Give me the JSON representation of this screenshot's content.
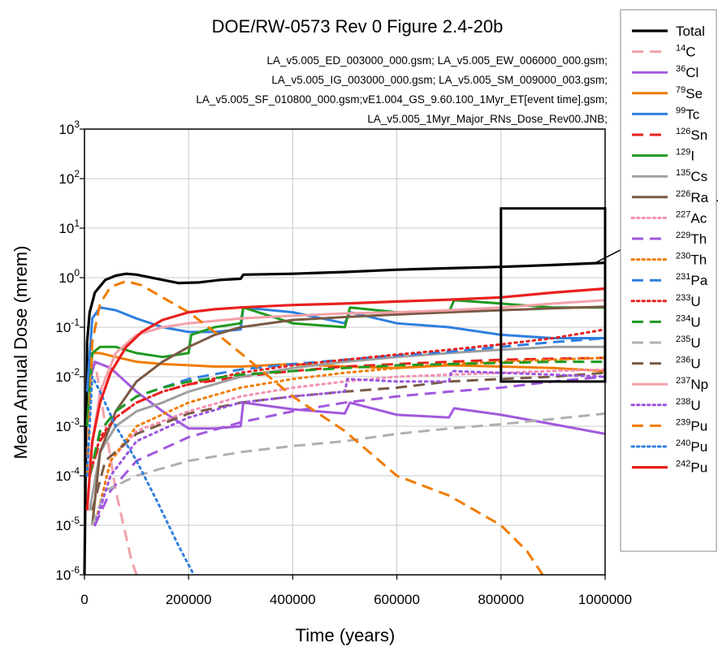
{
  "chart_data": {
    "type": "line",
    "title": "DOE/RW-0573 Rev 0 Figure 2.4-20b",
    "file_notes": [
      "LA_v5.005_ED_003000_000.gsm; LA_v5.005_EW_006000_000.gsm;",
      "LA_v5.005_IG_003000_000.gsm; LA_v5.005_SM_009000_003.gsm;",
      "LA_v5.005_SF_010800_000.gsm;vE1.004_GS_9.60.100_1Myr_ET[event time].gsm;",
      "LA_v5.005_1Myr_Major_RNs_Dose_Rev00.JNB;"
    ],
    "xlabel": "Time (years)",
    "ylabel": "Mean Annual Dose (mrem)",
    "xlim": [
      0,
      1000000
    ],
    "ylim": [
      1e-06,
      1000
    ],
    "yscale": "log",
    "grid": true,
    "legend_position": "right",
    "x_ticks": [
      "0",
      "200000",
      "400000",
      "600000",
      "800000",
      "1000000"
    ],
    "x_tick_values": [
      0,
      200000,
      400000,
      600000,
      800000,
      1000000
    ],
    "y_ticks": [
      {
        "base": "10",
        "exp": "3"
      },
      {
        "base": "10",
        "exp": "2"
      },
      {
        "base": "10",
        "exp": "1"
      },
      {
        "base": "10",
        "exp": "0"
      },
      {
        "base": "10",
        "exp": "-1"
      },
      {
        "base": "10",
        "exp": "-2"
      },
      {
        "base": "10",
        "exp": "-3"
      },
      {
        "base": "10",
        "exp": "-4"
      },
      {
        "base": "10",
        "exp": "-5"
      },
      {
        "base": "10",
        "exp": "-6"
      }
    ],
    "y_tick_values": [
      1000,
      100,
      10,
      1,
      0.1,
      0.01,
      0.001,
      0.0001,
      1e-05,
      1e-06
    ],
    "zoom_box": {
      "x": [
        800000,
        1000000
      ],
      "y": [
        0.008,
        25
      ]
    },
    "series": [
      {
        "name": "Total",
        "sup": "",
        "label": "Total",
        "color": "#000000",
        "dash": "solid",
        "width": 3.2,
        "x": [
          0,
          5000,
          10000,
          20000,
          40000,
          60000,
          80000,
          100000,
          140000,
          180000,
          220000,
          260000,
          300000,
          305000,
          400000,
          500000,
          600000,
          700000,
          800000,
          900000,
          1000000
        ],
        "y": [
          1e-06,
          0.05,
          0.2,
          0.5,
          0.9,
          1.1,
          1.2,
          1.15,
          0.95,
          0.78,
          0.8,
          0.9,
          0.95,
          1.15,
          1.2,
          1.3,
          1.45,
          1.55,
          1.65,
          1.8,
          2.0
        ]
      },
      {
        "name": "C",
        "sup": "14",
        "label": "C",
        "color": "#f2a1a8",
        "dash": "long",
        "width": 3,
        "x": [
          5000,
          10000,
          20000,
          30000,
          45000,
          60000,
          75000,
          90000,
          100000
        ],
        "y": [
          0.0001,
          0.01,
          0.02,
          0.005,
          0.0005,
          5e-05,
          1e-05,
          2e-06,
          1e-06
        ]
      },
      {
        "name": "Cl",
        "sup": "36",
        "label": "Cl",
        "color": "#a259dd",
        "dash": "solid",
        "width": 3,
        "x": [
          5000,
          20000,
          50000,
          100000,
          150000,
          200000,
          250000,
          300000,
          305000,
          400000,
          500000,
          510000,
          600000,
          700000,
          710000,
          800000,
          900000,
          1000000
        ],
        "y": [
          0.005,
          0.02,
          0.015,
          0.005,
          0.002,
          0.0009,
          0.0009,
          0.001,
          0.003,
          0.0022,
          0.0018,
          0.003,
          0.0017,
          0.0015,
          0.0023,
          0.0017,
          0.0011,
          0.0007
        ]
      },
      {
        "name": "Se",
        "sup": "79",
        "label": "Se",
        "color": "#f07c00",
        "dash": "solid",
        "width": 3,
        "x": [
          5000,
          15000,
          30000,
          60000,
          100000,
          150000,
          200000,
          250000,
          300000,
          400000,
          500000,
          600000,
          700000,
          800000,
          900000,
          1000000
        ],
        "y": [
          0.001,
          0.03,
          0.03,
          0.025,
          0.02,
          0.018,
          0.017,
          0.016,
          0.016,
          0.018,
          0.016,
          0.015,
          0.017,
          0.016,
          0.015,
          0.013
        ]
      },
      {
        "name": "Tc",
        "sup": "99",
        "label": "Tc",
        "color": "#2f7fe0",
        "dash": "solid",
        "width": 3,
        "x": [
          5000,
          15000,
          30000,
          60000,
          100000,
          150000,
          200000,
          250000,
          300000,
          305000,
          400000,
          500000,
          510000,
          600000,
          700000,
          800000,
          900000,
          1000000
        ],
        "y": [
          0.005,
          0.15,
          0.25,
          0.22,
          0.15,
          0.1,
          0.08,
          0.08,
          0.09,
          0.25,
          0.2,
          0.12,
          0.2,
          0.12,
          0.1,
          0.07,
          0.06,
          0.06
        ]
      },
      {
        "name": "Sn",
        "sup": "126",
        "label": "Sn",
        "color": "#e8201e",
        "dash": "long",
        "width": 3,
        "x": [
          10000,
          30000,
          60000,
          100000,
          150000,
          200000,
          300000,
          400000,
          500000,
          600000,
          700000,
          800000,
          900000,
          1000000
        ],
        "y": [
          0.0001,
          0.0005,
          0.0015,
          0.003,
          0.005,
          0.007,
          0.01,
          0.013,
          0.016,
          0.018,
          0.02,
          0.022,
          0.023,
          0.024
        ]
      },
      {
        "name": "I",
        "sup": "129",
        "label": "I",
        "color": "#1f9a1f",
        "dash": "solid",
        "width": 3,
        "x": [
          5000,
          15000,
          30000,
          60000,
          100000,
          150000,
          200000,
          205000,
          250000,
          300000,
          305000,
          400000,
          500000,
          510000,
          600000,
          700000,
          710000,
          800000,
          900000,
          1000000
        ],
        "y": [
          0.001,
          0.03,
          0.04,
          0.04,
          0.03,
          0.025,
          0.03,
          0.07,
          0.1,
          0.12,
          0.25,
          0.12,
          0.1,
          0.25,
          0.2,
          0.2,
          0.35,
          0.3,
          0.25,
          0.25
        ]
      },
      {
        "name": "Cs",
        "sup": "135",
        "label": "Cs",
        "color": "#a0a0a0",
        "dash": "solid",
        "width": 3,
        "x": [
          10000,
          30000,
          60000,
          100000,
          150000,
          200000,
          300000,
          400000,
          500000,
          600000,
          700000,
          800000,
          900000,
          1000000
        ],
        "y": [
          2e-05,
          0.0003,
          0.001,
          0.002,
          0.003,
          0.005,
          0.01,
          0.015,
          0.02,
          0.025,
          0.03,
          0.035,
          0.04,
          0.04
        ]
      },
      {
        "name": "Ra",
        "sup": "226",
        "label": "Ra",
        "color": "#7a5a45",
        "dash": "solid",
        "width": 3,
        "x": [
          15000,
          30000,
          60000,
          100000,
          150000,
          200000,
          250000,
          300000,
          400000,
          500000,
          600000,
          700000,
          800000,
          900000,
          1000000
        ],
        "y": [
          1e-05,
          0.0003,
          0.002,
          0.008,
          0.02,
          0.04,
          0.07,
          0.1,
          0.14,
          0.16,
          0.18,
          0.2,
          0.22,
          0.24,
          0.26
        ]
      },
      {
        "name": "Ac",
        "sup": "227",
        "label": "Ac",
        "color": "#f48fb1",
        "dash": "dot",
        "width": 3,
        "x": [
          20000,
          50000,
          100000,
          200000,
          300000,
          400000,
          500000,
          600000,
          700000,
          800000,
          900000,
          1000000
        ],
        "y": [
          1e-05,
          0.0002,
          0.0008,
          0.002,
          0.004,
          0.006,
          0.008,
          0.01,
          0.011,
          0.012,
          0.013,
          0.014
        ]
      },
      {
        "name": "Th",
        "sup": "229",
        "label": "Th",
        "color": "#a259dd",
        "dash": "long",
        "width": 3,
        "x": [
          20000,
          50000,
          100000,
          200000,
          300000,
          400000,
          500000,
          600000,
          700000,
          800000,
          900000,
          1000000
        ],
        "y": [
          1e-05,
          5e-05,
          0.0002,
          0.0006,
          0.0012,
          0.002,
          0.003,
          0.004,
          0.005,
          0.006,
          0.008,
          0.01
        ]
      },
      {
        "name": "Th",
        "sup": "230",
        "label": "Th",
        "color": "#f07c00",
        "dash": "dot",
        "width": 3,
        "x": [
          20000,
          50000,
          100000,
          200000,
          300000,
          400000,
          500000,
          600000,
          700000,
          800000,
          900000,
          1000000
        ],
        "y": [
          1e-05,
          0.0002,
          0.001,
          0.003,
          0.006,
          0.009,
          0.012,
          0.015,
          0.018,
          0.02,
          0.022,
          0.024
        ]
      },
      {
        "name": "Pa",
        "sup": "231",
        "label": "Pa",
        "color": "#2f7fe0",
        "dash": "long",
        "width": 3,
        "x": [
          10000,
          30000,
          60000,
          100000,
          150000,
          200000,
          300000,
          400000,
          500000,
          600000,
          700000,
          800000,
          900000,
          1000000
        ],
        "y": [
          0.0001,
          0.0008,
          0.002,
          0.004,
          0.006,
          0.009,
          0.014,
          0.018,
          0.022,
          0.027,
          0.032,
          0.04,
          0.05,
          0.06
        ]
      },
      {
        "name": "U",
        "sup": "233",
        "label": "U",
        "color": "#e8201e",
        "dash": "dot",
        "width": 3,
        "x": [
          10000,
          30000,
          60000,
          100000,
          150000,
          200000,
          300000,
          400000,
          500000,
          600000,
          700000,
          800000,
          900000,
          1000000
        ],
        "y": [
          0.0001,
          0.0006,
          0.0015,
          0.003,
          0.005,
          0.007,
          0.012,
          0.017,
          0.022,
          0.028,
          0.035,
          0.045,
          0.06,
          0.09
        ]
      },
      {
        "name": "U",
        "sup": "234",
        "label": "U",
        "color": "#1f9a1f",
        "dash": "long",
        "width": 3,
        "x": [
          10000,
          30000,
          60000,
          100000,
          150000,
          200000,
          300000,
          400000,
          500000,
          600000,
          700000,
          800000,
          900000,
          1000000
        ],
        "y": [
          0.0001,
          0.0008,
          0.002,
          0.004,
          0.006,
          0.008,
          0.011,
          0.013,
          0.015,
          0.017,
          0.018,
          0.019,
          0.02,
          0.02
        ]
      },
      {
        "name": "U",
        "sup": "235",
        "label": "U",
        "color": "#b0b0b0",
        "dash": "long",
        "width": 3,
        "x": [
          15000,
          40000,
          100000,
          200000,
          300000,
          400000,
          500000,
          600000,
          700000,
          800000,
          900000,
          1000000
        ],
        "y": [
          1e-05,
          5e-05,
          0.0001,
          0.0002,
          0.0003,
          0.0004,
          0.0005,
          0.0007,
          0.0009,
          0.0011,
          0.0014,
          0.0018
        ]
      },
      {
        "name": "U",
        "sup": "236",
        "label": "U",
        "color": "#7a5a45",
        "dash": "long",
        "width": 3,
        "x": [
          15000,
          40000,
          100000,
          200000,
          300000,
          400000,
          500000,
          600000,
          700000,
          800000,
          900000,
          1000000
        ],
        "y": [
          2e-05,
          0.0002,
          0.0007,
          0.0018,
          0.003,
          0.004,
          0.005,
          0.006,
          0.008,
          0.009,
          0.01,
          0.012
        ]
      },
      {
        "name": "Np",
        "sup": "237",
        "label": "Np",
        "color": "#f2a1a8",
        "dash": "solid",
        "width": 3,
        "x": [
          10000,
          30000,
          60000,
          100000,
          150000,
          200000,
          300000,
          400000,
          500000,
          600000,
          700000,
          800000,
          900000,
          1000000
        ],
        "y": [
          0.0002,
          0.005,
          0.03,
          0.07,
          0.1,
          0.12,
          0.15,
          0.17,
          0.19,
          0.2,
          0.22,
          0.25,
          0.3,
          0.35
        ]
      },
      {
        "name": "U",
        "sup": "238",
        "label": "U",
        "color": "#9a55e0",
        "dash": "dot",
        "width": 3,
        "x": [
          20000,
          50000,
          100000,
          200000,
          300000,
          400000,
          500000,
          505000,
          600000,
          700000,
          705000,
          800000,
          900000,
          1000000
        ],
        "y": [
          1e-05,
          0.0001,
          0.0005,
          0.0015,
          0.003,
          0.004,
          0.005,
          0.009,
          0.008,
          0.008,
          0.013,
          0.012,
          0.011,
          0.01
        ]
      },
      {
        "name": "Pu",
        "sup": "239",
        "label": "Pu",
        "color": "#f07c00",
        "dash": "long",
        "width": 3,
        "x": [
          5000,
          15000,
          30000,
          50000,
          80000,
          110000,
          150000,
          200000,
          250000,
          300000,
          400000,
          500000,
          600000,
          700000,
          800000,
          850000,
          880000
        ],
        "y": [
          0.0001,
          0.05,
          0.3,
          0.65,
          0.85,
          0.7,
          0.4,
          0.2,
          0.08,
          0.03,
          0.004,
          0.0008,
          0.0001,
          4e-05,
          1e-05,
          3e-06,
          1e-06
        ]
      },
      {
        "name": "Pu",
        "sup": "240",
        "label": "Pu",
        "color": "#2f7fe0",
        "dash": "dot",
        "width": 3,
        "x": [
          5000,
          15000,
          30000,
          60000,
          100000,
          140000,
          180000,
          210000
        ],
        "y": [
          0.0001,
          0.01,
          0.005,
          0.001,
          0.0002,
          3e-05,
          4e-06,
          1e-06
        ]
      },
      {
        "name": "Pu",
        "sup": "242",
        "label": "Pu",
        "color": "#e8201e",
        "dash": "solid",
        "width": 3.2,
        "x": [
          5000,
          15000,
          30000,
          50000,
          80000,
          110000,
          150000,
          200000,
          250000,
          300000,
          400000,
          500000,
          600000,
          700000,
          800000,
          900000,
          1000000
        ],
        "y": [
          2e-05,
          0.0005,
          0.003,
          0.012,
          0.04,
          0.08,
          0.14,
          0.2,
          0.23,
          0.25,
          0.28,
          0.3,
          0.33,
          0.36,
          0.4,
          0.5,
          0.6
        ]
      }
    ]
  }
}
